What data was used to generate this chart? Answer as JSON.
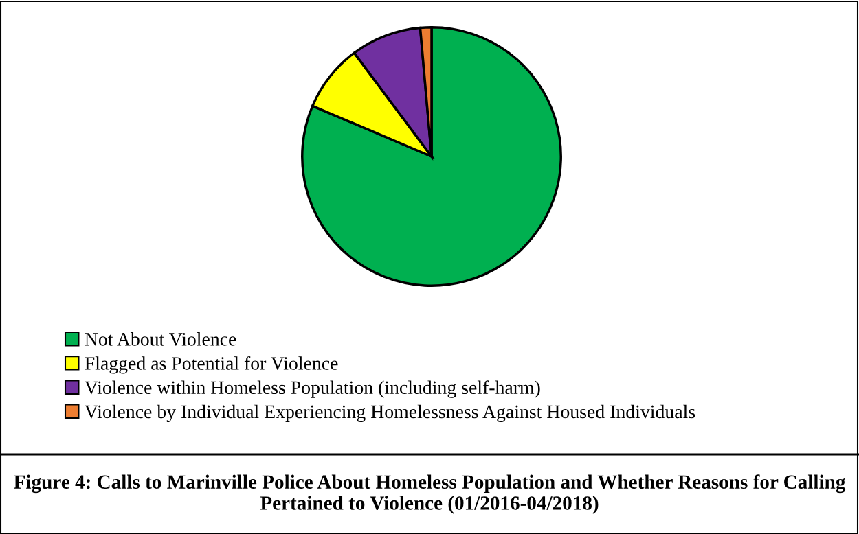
{
  "chart_data": {
    "type": "pie",
    "title": "Figure 4: Calls to Marinville Police About Homeless Population and Whether Reasons for Calling Pertained to Violence (01/2016-04/2018)",
    "categories": [
      "Not About Violence",
      "Flagged as Potential for Violence",
      "Violence within Homeless Population (including self-harm)",
      "Violence by Individual Experiencing Homelessness Against Housed Individuals"
    ],
    "values": [
      81.4,
      8.4,
      8.8,
      1.4
    ],
    "colors": [
      "#00b050",
      "#ffff00",
      "#7030a0",
      "#ed7d31"
    ],
    "legend": "bottom left"
  }
}
